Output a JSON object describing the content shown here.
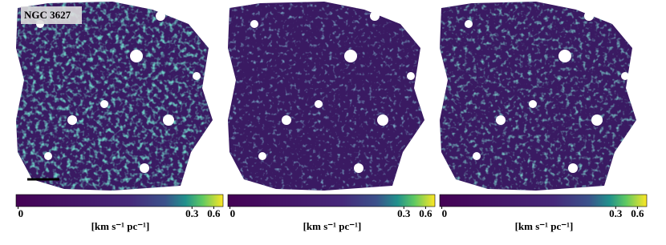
{
  "panels": [
    {
      "label": "NGC 3627",
      "colorbar": {
        "ticks": [
          0,
          0.3,
          0.6
        ],
        "label": "[km s⁻¹ pc⁻¹]"
      }
    },
    {
      "colorbar": {
        "ticks": [
          0,
          0.3,
          0.6
        ],
        "label": "[km s⁻¹ pc⁻¹]"
      }
    },
    {
      "colorbar": {
        "ticks": [
          0,
          0.3,
          0.6
        ],
        "label": "[km s⁻¹ pc⁻¹]"
      }
    }
  ]
}
